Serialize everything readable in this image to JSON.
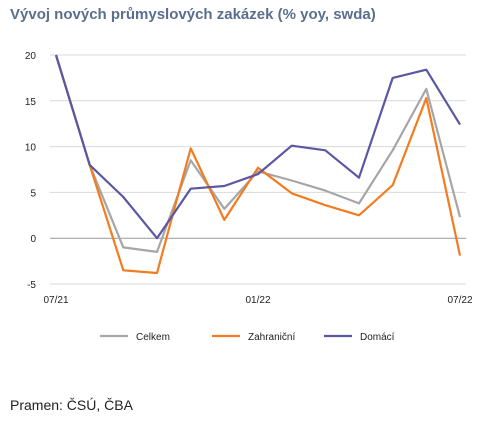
{
  "title": "Vývoj nových průmyslových zakázek (% yoy, swda)",
  "source": "Pramen: ČSÚ, ČBA",
  "chart_data": {
    "type": "line",
    "title": "Vývoj nových průmyslových zakázek (% yoy, swda)",
    "x": [
      "07/21",
      "08/21",
      "09/21",
      "10/21",
      "11/21",
      "12/21",
      "01/22",
      "02/22",
      "03/22",
      "04/22",
      "05/22",
      "06/22",
      "07/22"
    ],
    "x_tick_labels": [
      "07/21",
      "01/22",
      "07/22"
    ],
    "y_ticks": [
      20,
      15,
      10,
      5,
      0,
      -5
    ],
    "ylim": [
      -5,
      20
    ],
    "grid": "horizontal",
    "legend_position": "bottom",
    "series": [
      {
        "name": "Celkem",
        "color": "#a6a6a6",
        "values": [
          20.0,
          8.0,
          -1.0,
          -1.5,
          8.5,
          3.2,
          7.3,
          6.3,
          5.2,
          3.8,
          9.6,
          16.3,
          2.3
        ]
      },
      {
        "name": "Zahraniční",
        "color": "#f47b20",
        "values": [
          20.0,
          8.0,
          -3.5,
          -3.8,
          9.8,
          2.0,
          7.7,
          4.9,
          3.6,
          2.5,
          5.8,
          15.3,
          -1.9
        ]
      },
      {
        "name": "Domácí",
        "color": "#5b57a3",
        "values": [
          20.0,
          8.0,
          4.5,
          0.0,
          5.4,
          5.7,
          7.0,
          10.1,
          9.6,
          6.6,
          17.5,
          18.4,
          12.4
        ]
      }
    ]
  }
}
